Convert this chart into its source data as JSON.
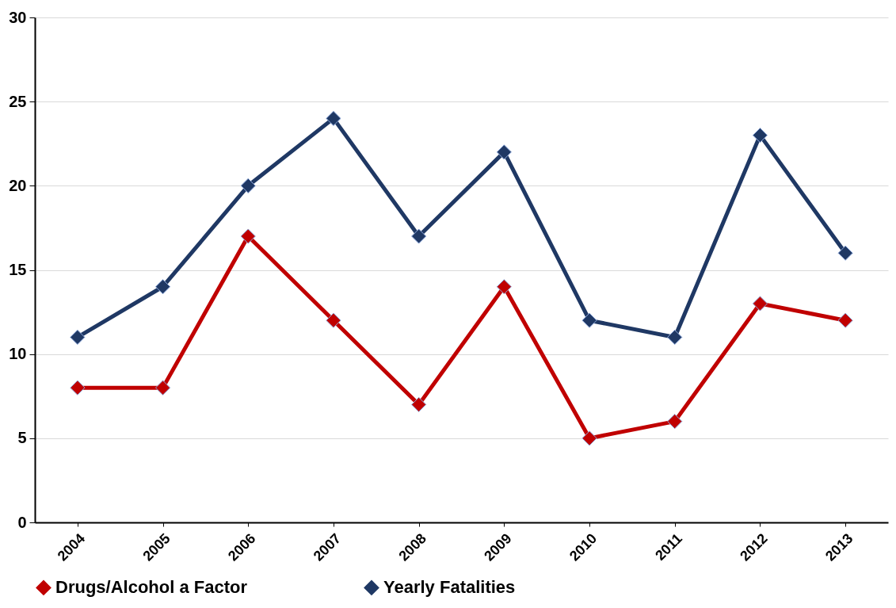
{
  "chart_data": {
    "type": "line",
    "categories": [
      "2004",
      "2005",
      "2006",
      "2007",
      "2008",
      "2009",
      "2010",
      "2011",
      "2012",
      "2013"
    ],
    "series": [
      {
        "name": "Drugs/Alcohol a Factor",
        "color": "#c00000",
        "values": [
          8,
          8,
          17,
          12,
          7,
          14,
          5,
          6,
          13,
          12
        ]
      },
      {
        "name": "Yearly Fatalities",
        "color": "#1f3864",
        "values": [
          11,
          14,
          20,
          24,
          17,
          22,
          12,
          11,
          23,
          16
        ]
      }
    ],
    "ylim": [
      0,
      30
    ],
    "yticks": [
      0,
      5,
      10,
      15,
      20,
      25,
      30
    ],
    "grid": "y",
    "legend": "bottom",
    "marker": "diamond",
    "line_style": "solid"
  }
}
